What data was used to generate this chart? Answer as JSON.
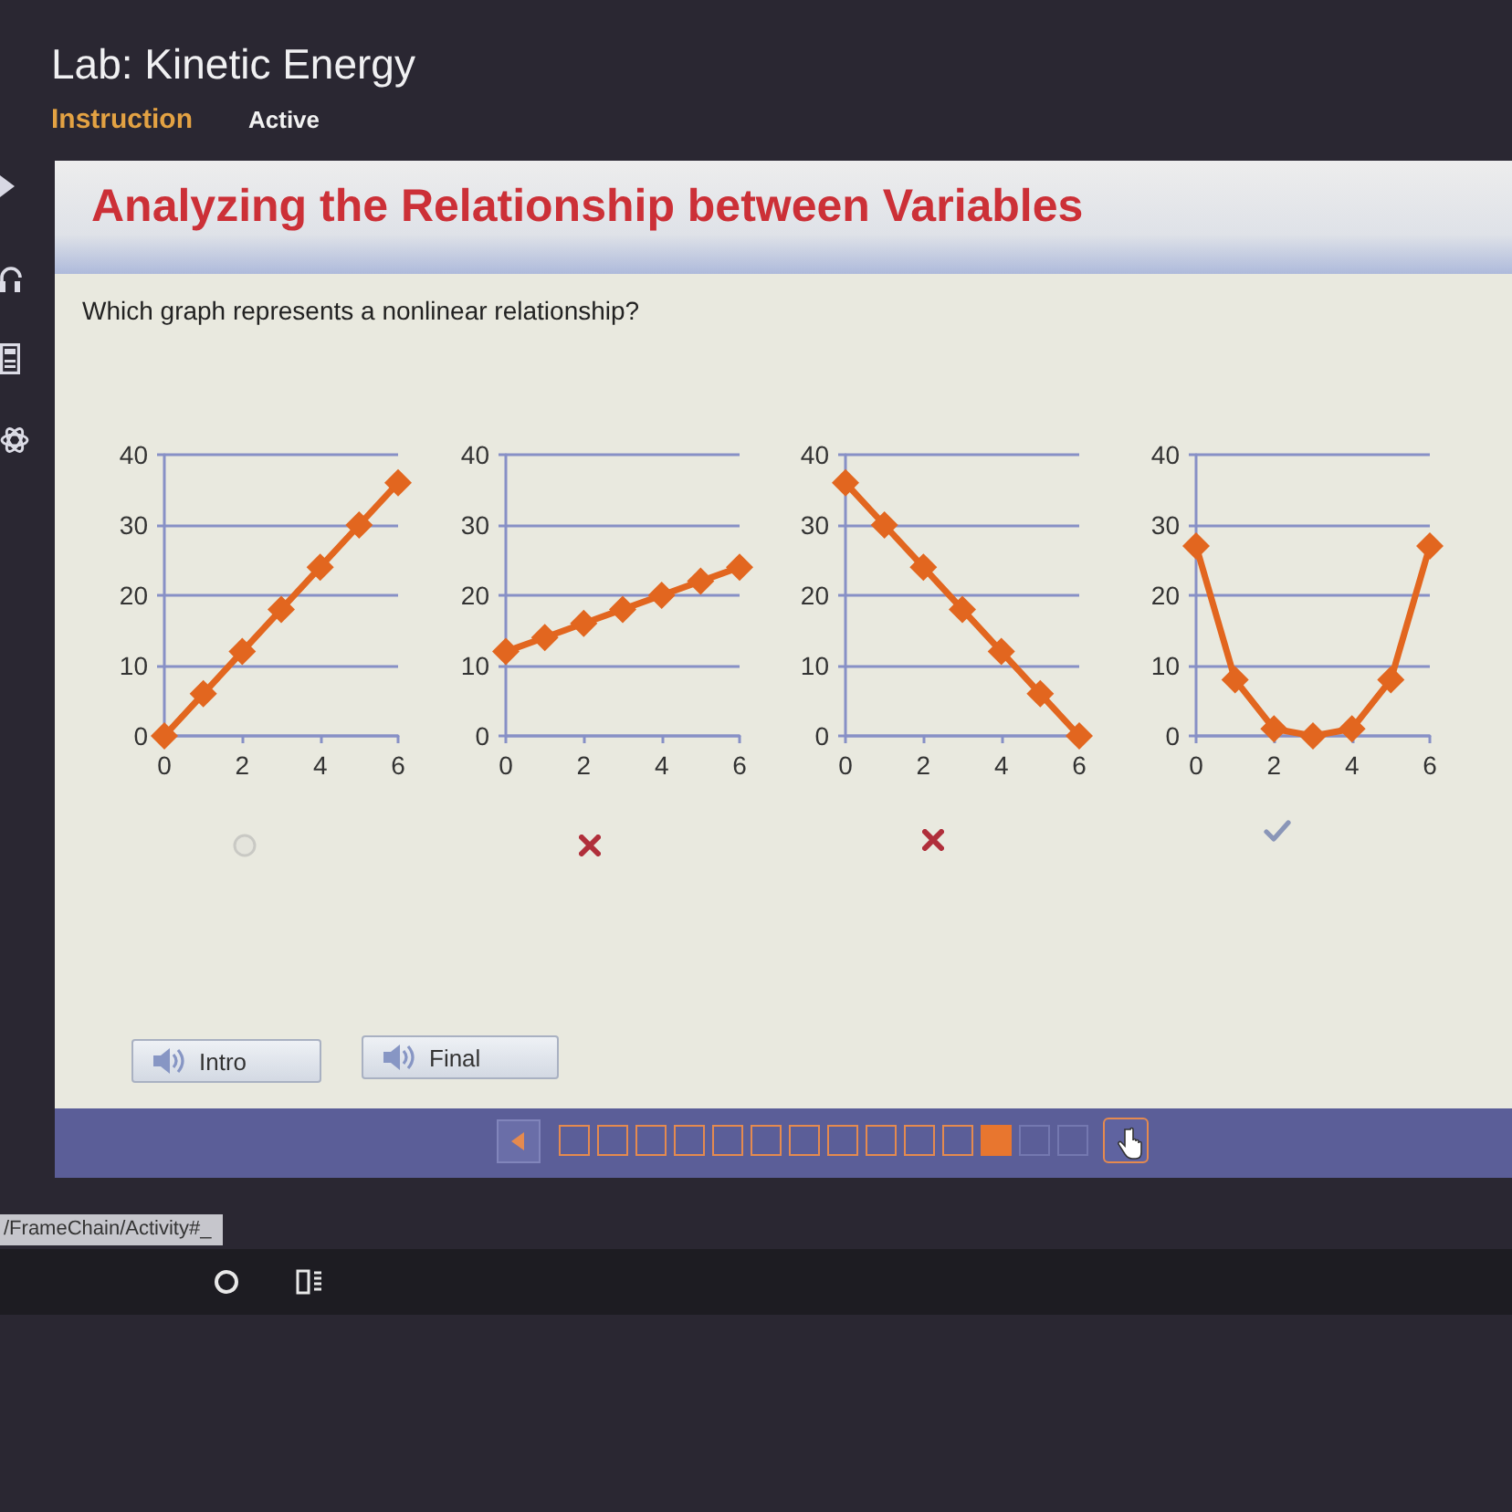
{
  "chart_data": [
    {
      "type": "line",
      "title": "Analyzing the Relationship between Variables",
      "subtitle": "Which graph represents a nonlinear relationship?",
      "annotations": [
        "Lab: Kinetic Energy",
        "Instruction",
        "Active",
        "Intro",
        "Final",
        "/FrameChain/Activity#_"
      ],
      "x": [
        0,
        1,
        2,
        3,
        4,
        5,
        6
      ],
      "values": [
        0,
        6,
        12,
        18,
        24,
        30,
        36
      ],
      "color": "#e2661f",
      "xlim": [
        0,
        6
      ],
      "ylim": [
        0,
        40
      ],
      "xticks": [
        0,
        2,
        4,
        6
      ],
      "yticks": [
        0,
        10,
        20,
        30,
        40
      ],
      "grid": "y",
      "marker": "diamond"
    },
    {
      "type": "line",
      "x": [
        0,
        1,
        2,
        3,
        4,
        5,
        6
      ],
      "values": [
        12,
        14,
        16,
        18,
        20,
        22,
        24
      ],
      "color": "#e2661f",
      "xlim": [
        0,
        6
      ],
      "ylim": [
        0,
        40
      ],
      "xticks": [
        0,
        2,
        4,
        6
      ],
      "yticks": [
        0,
        10,
        20,
        30,
        40
      ],
      "grid": "y",
      "marker": "diamond"
    },
    {
      "type": "line",
      "x": [
        0,
        1,
        2,
        3,
        4,
        5,
        6
      ],
      "values": [
        36,
        30,
        24,
        18,
        12,
        6,
        0
      ],
      "color": "#e2661f",
      "xlim": [
        0,
        6
      ],
      "ylim": [
        0,
        40
      ],
      "xticks": [
        0,
        2,
        4,
        6
      ],
      "yticks": [
        0,
        10,
        20,
        30,
        40
      ],
      "grid": "y",
      "marker": "diamond"
    },
    {
      "type": "line",
      "x": [
        0,
        1,
        2,
        3,
        4,
        5,
        6
      ],
      "values": [
        27,
        8,
        1,
        0,
        1,
        8,
        27
      ],
      "color": "#e2661f",
      "xlim": [
        0,
        6
      ],
      "ylim": [
        0,
        40
      ],
      "xticks": [
        0,
        2,
        4,
        6
      ],
      "yticks": [
        0,
        10,
        20,
        30,
        40
      ],
      "grid": "y",
      "marker": "diamond"
    }
  ]
}
